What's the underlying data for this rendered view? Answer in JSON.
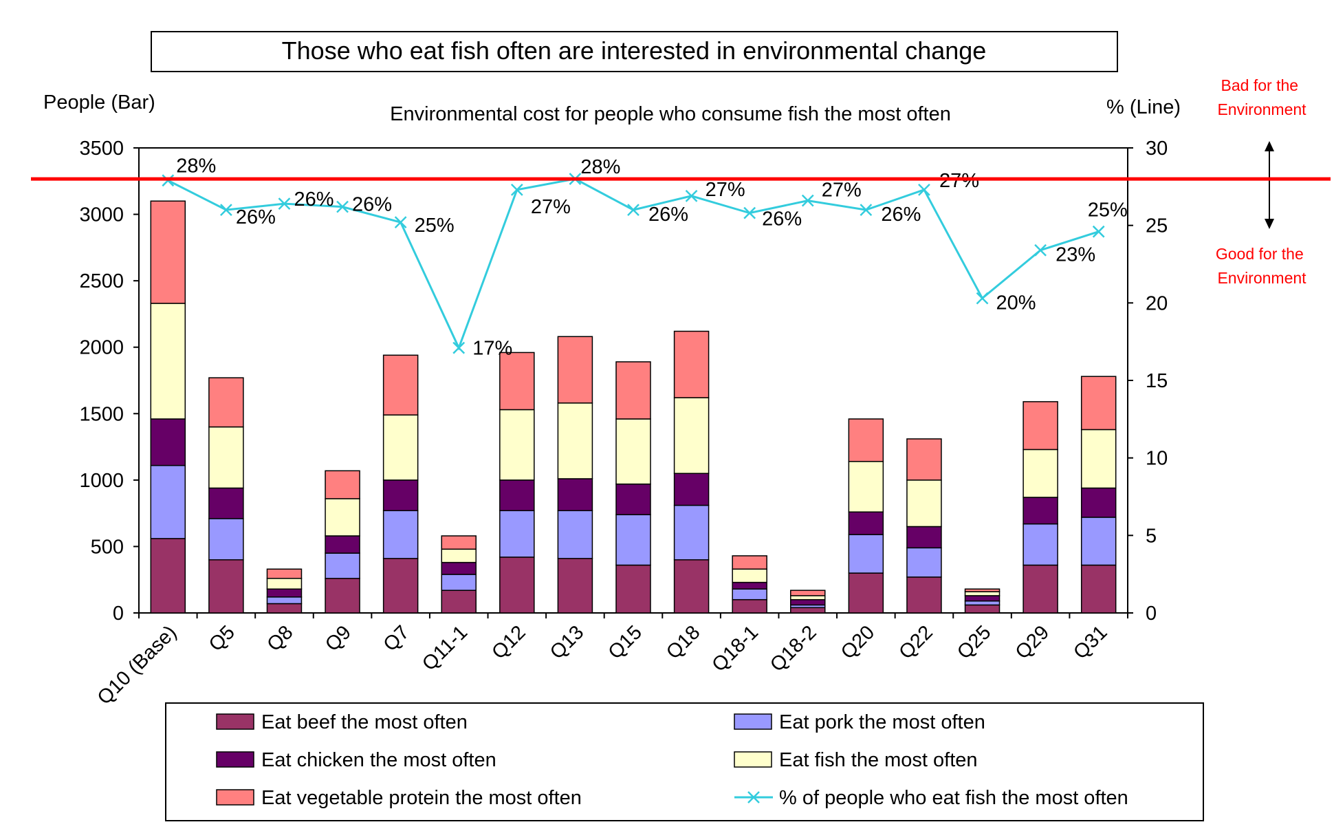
{
  "chart_data": {
    "type": "bar",
    "stacked": true,
    "title": "Those who eat fish often are interested in environmental change",
    "subtitle": "Environmental cost for people who consume fish the most often",
    "ylabel": "People (Bar)",
    "y2label": "% (Line)",
    "ylim": [
      0,
      3500
    ],
    "y2lim": [
      0,
      30
    ],
    "yticks": [
      0,
      500,
      1000,
      1500,
      2000,
      2500,
      3000,
      3500
    ],
    "y2ticks": [
      0,
      5,
      10,
      15,
      20,
      25,
      30
    ],
    "categories": [
      "Q10 (Base)",
      "Q5",
      "Q8",
      "Q9",
      "Q7",
      "Q11-1",
      "Q12",
      "Q13",
      "Q15",
      "Q18",
      "Q18-1",
      "Q18-2",
      "Q20",
      "Q22",
      "Q25",
      "Q29",
      "Q31"
    ],
    "series": [
      {
        "name": "Eat beef the most often",
        "color": "#993366",
        "values": [
          560,
          400,
          70,
          260,
          410,
          170,
          420,
          410,
          360,
          400,
          100,
          40,
          300,
          270,
          60,
          360,
          360
        ]
      },
      {
        "name": "Eat pork the most often",
        "color": "#9999ff",
        "values": [
          550,
          310,
          50,
          190,
          360,
          120,
          350,
          360,
          380,
          410,
          80,
          20,
          290,
          220,
          30,
          310,
          360
        ]
      },
      {
        "name": "Eat chicken the most often",
        "color": "#660066",
        "values": [
          350,
          230,
          60,
          130,
          230,
          90,
          230,
          240,
          230,
          240,
          50,
          40,
          170,
          160,
          40,
          200,
          220
        ]
      },
      {
        "name": "Eat fish the most often",
        "color": "#ffffcc",
        "values": [
          870,
          460,
          80,
          280,
          490,
          100,
          530,
          570,
          490,
          570,
          100,
          30,
          380,
          350,
          30,
          360,
          440
        ]
      },
      {
        "name": "Eat vegetable protein the most often",
        "color": "#ff8080",
        "values": [
          770,
          370,
          70,
          210,
          450,
          100,
          430,
          500,
          430,
          500,
          100,
          40,
          320,
          310,
          20,
          360,
          400
        ]
      }
    ],
    "line_series": {
      "name": "% of people who eat fish the most often",
      "color": "#33ccdd",
      "axis": "right",
      "values": [
        27.9,
        26.0,
        26.4,
        26.2,
        25.2,
        17.1,
        27.3,
        28.0,
        26.0,
        26.9,
        25.8,
        26.6,
        26.0,
        27.3,
        20.3,
        23.4,
        24.6
      ],
      "labels": [
        "28%",
        "26%",
        "26%",
        "26%",
        "25%",
        "17%",
        "27%",
        "28%",
        "26%",
        "27%",
        "26%",
        "27%",
        "26%",
        "27%",
        "20%",
        "23%",
        "25%"
      ]
    },
    "reference_line": {
      "value_y2": 28,
      "color": "#ff0000"
    },
    "legend_position": "bottom",
    "grid": false
  },
  "annotations": {
    "bad_label": "Bad for the Environment",
    "good_label": "Good for the Environment",
    "color": "#ff0000"
  }
}
